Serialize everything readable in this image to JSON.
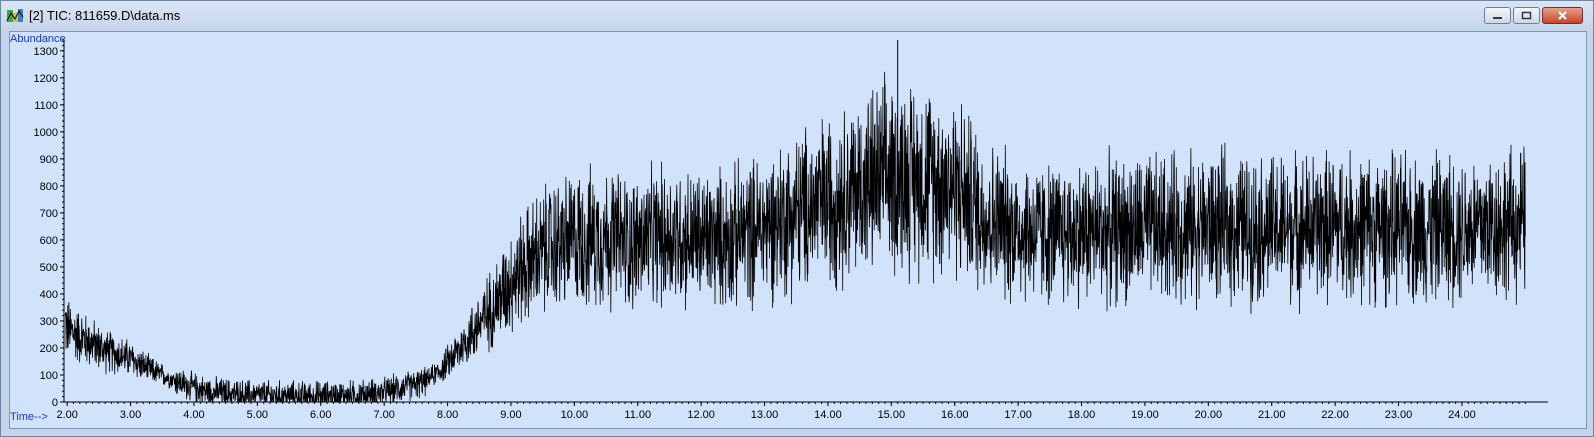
{
  "window": {
    "title": "[2] TIC: 811659.D\\data.ms",
    "icon": "chromatogram-app-icon",
    "buttons": [
      "minimize",
      "maximize",
      "close"
    ]
  },
  "chart_data": {
    "type": "line",
    "ylabel": "Abundance",
    "xlabel": "Time-->",
    "x_ticks": [
      "2.00",
      "3.00",
      "4.00",
      "5.00",
      "6.00",
      "7.00",
      "8.00",
      "9.00",
      "10.00",
      "11.00",
      "12.00",
      "13.00",
      "14.00",
      "15.00",
      "16.00",
      "17.00",
      "18.00",
      "19.00",
      "20.00",
      "21.00",
      "22.00",
      "23.00",
      "24.00"
    ],
    "y_ticks": [
      "0",
      "100",
      "200",
      "300",
      "400",
      "500",
      "600",
      "700",
      "800",
      "900",
      "1000",
      "1100",
      "1200",
      "1300"
    ],
    "xlim": [
      1.95,
      25.2
    ],
    "ylim": [
      0,
      1340
    ],
    "series": [
      {
        "x": [
          1.95,
          2.0,
          2.3,
          2.6,
          3.0,
          3.3,
          3.6,
          3.9,
          4.2,
          4.6,
          5.0,
          5.5,
          6.0,
          6.5,
          7.0,
          7.3,
          7.6,
          7.9,
          8.2,
          8.5,
          8.8,
          9.0,
          9.3,
          9.6,
          10.0,
          10.5,
          11.0,
          11.5,
          12.0,
          12.5,
          13.0,
          13.5,
          14.0,
          14.5,
          15.0,
          15.5,
          16.0,
          16.5,
          17.0,
          17.5,
          18.0,
          19.0,
          20.0,
          21.0,
          22.0,
          23.0,
          24.0,
          25.0
        ],
        "values": [
          310,
          270,
          230,
          190,
          160,
          120,
          90,
          60,
          40,
          30,
          25,
          22,
          22,
          25,
          35,
          55,
          70,
          120,
          200,
          290,
          380,
          450,
          520,
          570,
          600,
          610,
          590,
          620,
          600,
          610,
          650,
          700,
          750,
          790,
          840,
          830,
          810,
          680,
          640,
          620,
          630,
          640,
          650,
          640,
          650,
          640,
          650,
          660
        ]
      }
    ],
    "annotations": [
      {
        "x": 15.1,
        "y": 1340
      }
    ]
  }
}
